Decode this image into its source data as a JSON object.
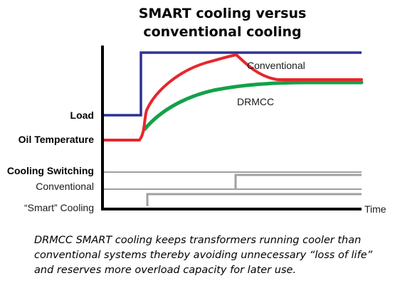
{
  "title": {
    "line1": "SMART cooling versus",
    "line2": "conventional cooling"
  },
  "labels": {
    "load": "Load",
    "oil_temperature": "Oil Temperature",
    "cooling_switching": "Cooling Switching",
    "conventional_switch": "Conventional",
    "smart_switch": "“Smart” Cooling",
    "time_axis": "Time",
    "conventional_curve": "Conventional",
    "drmcc_curve": "DRMCC"
  },
  "caption": "DRMCC SMART cooling keeps transformers running cooler than conventional systems thereby avoiding unnecessary “loss of life” and reserves more overload capacity for later use.",
  "colors": {
    "load": "#2e3192",
    "conventional": "#e8262b",
    "drmcc": "#13a14a",
    "switching": "#a0a0a0",
    "axis": "#000000"
  }
}
